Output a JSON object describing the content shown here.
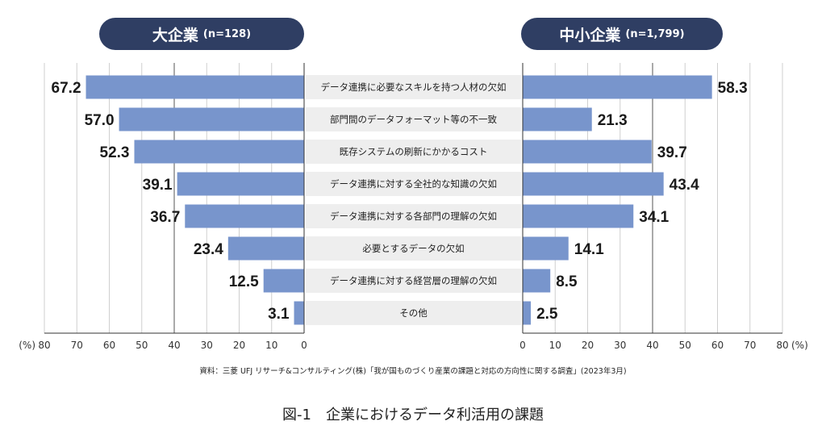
{
  "headers": {
    "left": {
      "name": "大企業",
      "n": "(n=128)"
    },
    "right": {
      "name": "中小企業",
      "n": "(n=1,799)"
    }
  },
  "chart_data": {
    "type": "bar",
    "orientation": "horizontal-butterfly",
    "categories": [
      "データ連携に必要なスキルを持つ人材の欠如",
      "部門間のデータフォーマット等の不一致",
      "既存システムの刷新にかかるコスト",
      "データ連携に対する全社的な知識の欠如",
      "データ連携に対する各部門の理解の欠如",
      "必要とするデータの欠如",
      "データ連携に対する経営層の理解の欠如",
      "その他"
    ],
    "series": [
      {
        "name": "大企業",
        "side": "left",
        "values": [
          67.2,
          57.0,
          52.3,
          39.1,
          36.7,
          23.4,
          12.5,
          3.1
        ],
        "labels": [
          "67.2",
          "57.0",
          "52.3",
          "39.1",
          "36.7",
          "23.4",
          "12.5",
          "3.1"
        ]
      },
      {
        "name": "中小企業",
        "side": "right",
        "values": [
          58.3,
          21.3,
          39.7,
          43.4,
          34.1,
          14.1,
          8.5,
          2.5
        ],
        "labels": [
          "58.3",
          "21.3",
          "39.7",
          "43.4",
          "34.1",
          "14.1",
          "8.5",
          "2.5"
        ]
      }
    ],
    "left_axis": {
      "ticks": [
        80,
        70,
        60,
        50,
        40,
        30,
        20,
        10,
        0
      ],
      "unit": "(%)",
      "xlim": [
        0,
        80
      ]
    },
    "right_axis": {
      "ticks": [
        0,
        10,
        20,
        30,
        40,
        50,
        60,
        70,
        80
      ],
      "unit": "(%)",
      "xlim": [
        0,
        80
      ]
    },
    "grid": true,
    "bar_color": "#7895cc",
    "label_band_color": "#eeeeee"
  },
  "source": "資料：三菱 UFJ リサーチ&コンサルティング(株)「我が国ものづくり産業の課題と対応の方向性に関する調査」(2023年3月)",
  "figure_title": "図-1　企業におけるデータ利活用の課題"
}
